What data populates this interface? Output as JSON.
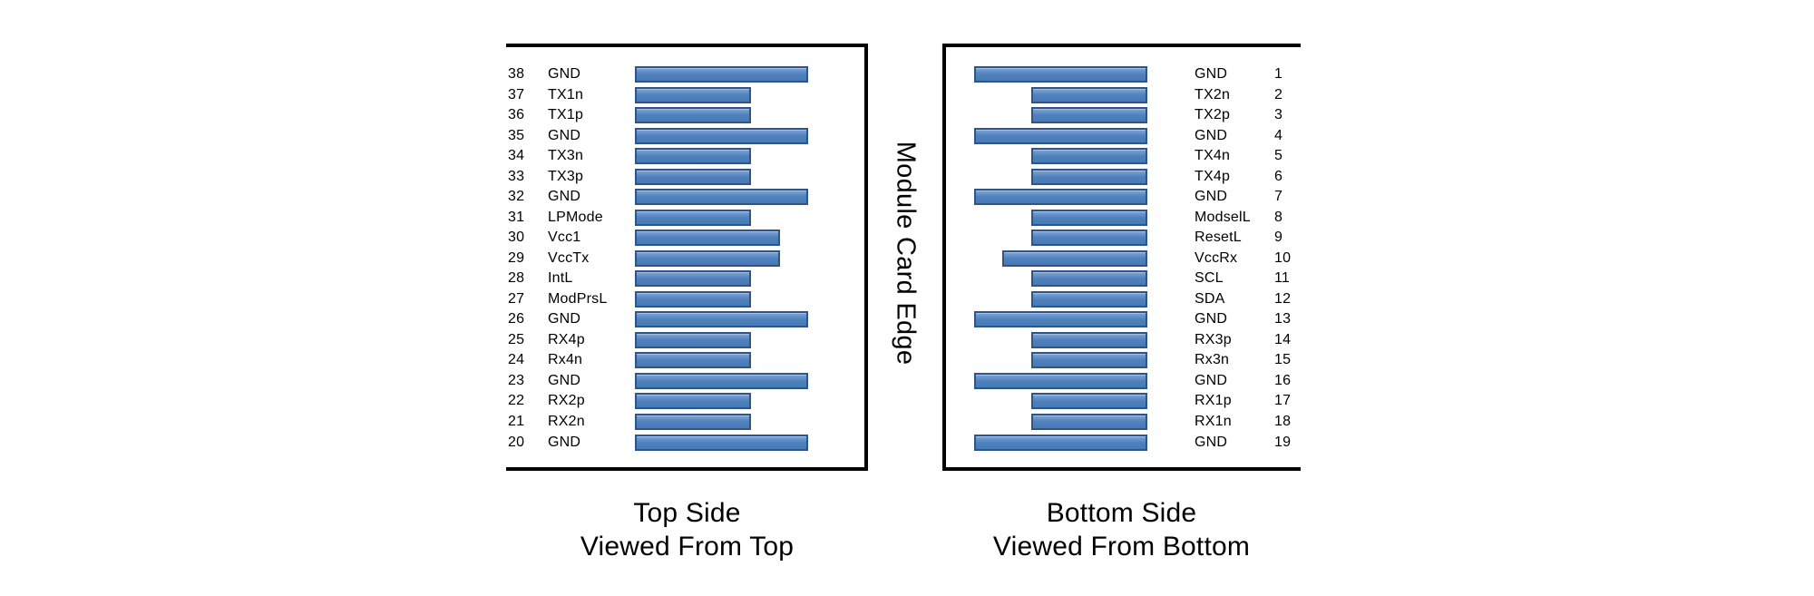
{
  "module_card_edge_label": "Module Card Edge",
  "colors": {
    "bar_fill": "#4f81bd",
    "bar_border": "#2d5588",
    "panel_border": "#000000"
  },
  "left_panel": {
    "caption_line1": "Top Side",
    "caption_line2": "Viewed From Top",
    "rows": [
      {
        "pin": "38",
        "name": "GND",
        "bar": "long"
      },
      {
        "pin": "37",
        "name": "TX1n",
        "bar": "short"
      },
      {
        "pin": "36",
        "name": "TX1p",
        "bar": "short"
      },
      {
        "pin": "35",
        "name": "GND",
        "bar": "long"
      },
      {
        "pin": "34",
        "name": "TX3n",
        "bar": "short"
      },
      {
        "pin": "33",
        "name": "TX3p",
        "bar": "short"
      },
      {
        "pin": "32",
        "name": "GND",
        "bar": "long"
      },
      {
        "pin": "31",
        "name": "LPMode",
        "bar": "short"
      },
      {
        "pin": "30",
        "name": "Vcc1",
        "bar": "medium"
      },
      {
        "pin": "29",
        "name": "VccTx",
        "bar": "medium"
      },
      {
        "pin": "28",
        "name": "IntL",
        "bar": "short"
      },
      {
        "pin": "27",
        "name": "ModPrsL",
        "bar": "short"
      },
      {
        "pin": "26",
        "name": "GND",
        "bar": "long"
      },
      {
        "pin": "25",
        "name": "RX4p",
        "bar": "short"
      },
      {
        "pin": "24",
        "name": "Rx4n",
        "bar": "short"
      },
      {
        "pin": "23",
        "name": "GND",
        "bar": "long"
      },
      {
        "pin": "22",
        "name": "RX2p",
        "bar": "short"
      },
      {
        "pin": "21",
        "name": "RX2n",
        "bar": "short"
      },
      {
        "pin": "20",
        "name": "GND",
        "bar": "long"
      }
    ]
  },
  "right_panel": {
    "caption_line1": "Bottom Side",
    "caption_line2": "Viewed From Bottom",
    "rows": [
      {
        "pin": "1",
        "name": "GND",
        "bar": "long"
      },
      {
        "pin": "2",
        "name": "TX2n",
        "bar": "short"
      },
      {
        "pin": "3",
        "name": "TX2p",
        "bar": "short"
      },
      {
        "pin": "4",
        "name": "GND",
        "bar": "long"
      },
      {
        "pin": "5",
        "name": "TX4n",
        "bar": "short"
      },
      {
        "pin": "6",
        "name": "TX4p",
        "bar": "short"
      },
      {
        "pin": "7",
        "name": "GND",
        "bar": "long"
      },
      {
        "pin": "8",
        "name": "ModselL",
        "bar": "short"
      },
      {
        "pin": "9",
        "name": "ResetL",
        "bar": "short"
      },
      {
        "pin": "10",
        "name": "VccRx",
        "bar": "medium"
      },
      {
        "pin": "11",
        "name": "SCL",
        "bar": "short"
      },
      {
        "pin": "12",
        "name": "SDA",
        "bar": "short"
      },
      {
        "pin": "13",
        "name": "GND",
        "bar": "long"
      },
      {
        "pin": "14",
        "name": "RX3p",
        "bar": "short"
      },
      {
        "pin": "15",
        "name": "Rx3n",
        "bar": "short"
      },
      {
        "pin": "16",
        "name": "GND",
        "bar": "long"
      },
      {
        "pin": "17",
        "name": "RX1p",
        "bar": "short"
      },
      {
        "pin": "18",
        "name": "RX1n",
        "bar": "short"
      },
      {
        "pin": "19",
        "name": "GND",
        "bar": "long"
      }
    ]
  }
}
